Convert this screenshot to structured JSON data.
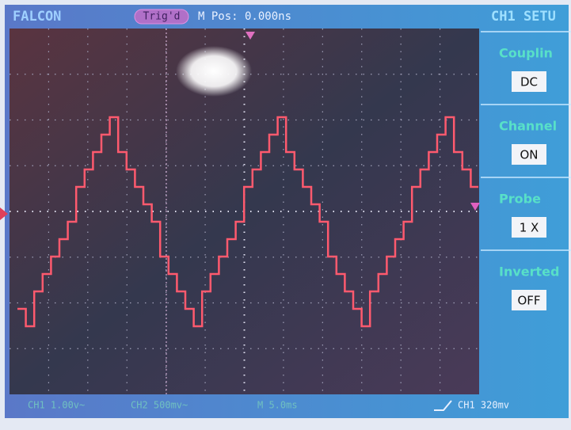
{
  "header": {
    "brand": "FALCON",
    "trigger": "Trig'd",
    "position": "M Pos: 0.000ns",
    "menu_title": "CH1 SETU"
  },
  "menu": [
    {
      "label": "Couplin",
      "value": "DC"
    },
    {
      "label": "Channel",
      "value": "ON"
    },
    {
      "label": "Probe",
      "value": "1 X"
    },
    {
      "label": "Inverted",
      "value": "OFF"
    }
  ],
  "status": {
    "ch1": "CH1 1.00v~",
    "ch2": "CH2 500mv~",
    "timebase": "M 5.0ms",
    "trigger_level": "CH1 320mv"
  }
}
